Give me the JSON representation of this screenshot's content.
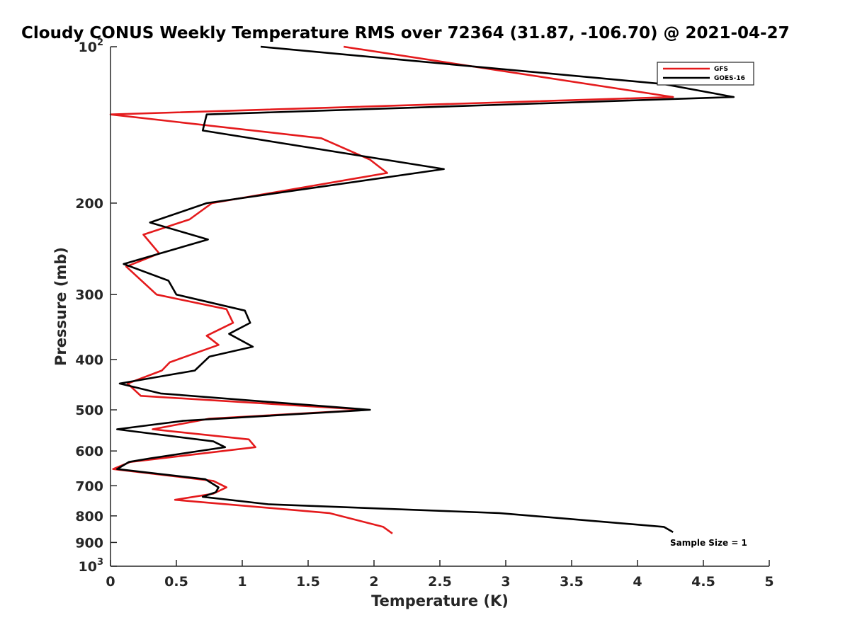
{
  "chart_data": {
    "type": "line",
    "title": "Cloudy CONUS Weekly Temperature RMS over 72364 (31.87, -106.70) @ 2021-04-27",
    "xlabel": "Temperature (K)",
    "ylabel": "Pressure (mb)",
    "xlim": [
      0,
      5
    ],
    "ylim": [
      1000,
      100
    ],
    "yscale": "log",
    "y_reversed": true,
    "grid": false,
    "legend_position": "top-right",
    "x_ticks": [
      0,
      0.5,
      1,
      1.5,
      2,
      2.5,
      3,
      3.5,
      4,
      4.5,
      5
    ],
    "x_tick_labels": [
      "0",
      "0.5",
      "1",
      "1.5",
      "2",
      "2.5",
      "3",
      "3.5",
      "4",
      "4.5",
      "5"
    ],
    "y_ticks": [
      100,
      200,
      300,
      400,
      500,
      600,
      700,
      800,
      900,
      1000
    ],
    "y_tick_labels": [
      {
        "base": "10",
        "exp": "2"
      },
      {
        "base": "200",
        "exp": ""
      },
      {
        "base": "300",
        "exp": ""
      },
      {
        "base": "400",
        "exp": ""
      },
      {
        "base": "500",
        "exp": ""
      },
      {
        "base": "600",
        "exp": ""
      },
      {
        "base": "700",
        "exp": ""
      },
      {
        "base": "800",
        "exp": ""
      },
      {
        "base": "900",
        "exp": ""
      },
      {
        "base": "10",
        "exp": "3"
      }
    ],
    "annotation": "Sample Size = 1",
    "series": [
      {
        "name": "GFS",
        "color": "#e41a1c",
        "points": [
          [
            1.77,
            100
          ],
          [
            4.27,
            125
          ],
          [
            0.0,
            135
          ],
          [
            1.6,
            150
          ],
          [
            1.97,
            165
          ],
          [
            2.1,
            175
          ],
          [
            0.77,
            200
          ],
          [
            0.6,
            215
          ],
          [
            0.25,
            230
          ],
          [
            0.37,
            250
          ],
          [
            0.12,
            265
          ],
          [
            0.35,
            300
          ],
          [
            0.88,
            320
          ],
          [
            0.93,
            340
          ],
          [
            0.73,
            360
          ],
          [
            0.82,
            375
          ],
          [
            0.45,
            405
          ],
          [
            0.39,
            420
          ],
          [
            0.13,
            445
          ],
          [
            0.23,
            470
          ],
          [
            1.95,
            500
          ],
          [
            0.75,
            520
          ],
          [
            0.32,
            545
          ],
          [
            1.05,
            570
          ],
          [
            1.1,
            590
          ],
          [
            0.15,
            630
          ],
          [
            0.02,
            650
          ],
          [
            0.78,
            685
          ],
          [
            0.88,
            705
          ],
          [
            0.78,
            725
          ],
          [
            0.49,
            745
          ],
          [
            1.66,
            790
          ],
          [
            2.07,
            840
          ],
          [
            2.14,
            865
          ]
        ]
      },
      {
        "name": "GOES-16",
        "color": "#000000",
        "points": [
          [
            1.14,
            100
          ],
          [
            4.2,
            118
          ],
          [
            4.73,
            125
          ],
          [
            0.73,
            135
          ],
          [
            0.7,
            145
          ],
          [
            2.53,
            172
          ],
          [
            0.73,
            200
          ],
          [
            0.3,
            218
          ],
          [
            0.74,
            235
          ],
          [
            0.1,
            262
          ],
          [
            0.44,
            282
          ],
          [
            0.5,
            300
          ],
          [
            1.02,
            322
          ],
          [
            1.06,
            340
          ],
          [
            0.9,
            357
          ],
          [
            1.08,
            378
          ],
          [
            0.75,
            395
          ],
          [
            0.64,
            420
          ],
          [
            0.07,
            445
          ],
          [
            0.38,
            465
          ],
          [
            1.97,
            500
          ],
          [
            0.55,
            525
          ],
          [
            0.05,
            545
          ],
          [
            0.78,
            575
          ],
          [
            0.87,
            590
          ],
          [
            0.3,
            620
          ],
          [
            0.14,
            630
          ],
          [
            0.05,
            650
          ],
          [
            0.72,
            680
          ],
          [
            0.82,
            705
          ],
          [
            0.8,
            720
          ],
          [
            0.7,
            735
          ],
          [
            1.2,
            760
          ],
          [
            2.95,
            790
          ],
          [
            4.2,
            840
          ],
          [
            4.27,
            860
          ]
        ]
      }
    ]
  }
}
